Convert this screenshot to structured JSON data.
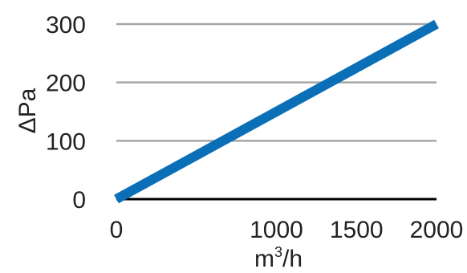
{
  "chart_data": {
    "type": "line",
    "title": "",
    "xlabel": "m³/h",
    "ylabel": "ΔPa",
    "xlim": [
      0,
      2000
    ],
    "ylim": [
      0,
      300
    ],
    "x_ticks": [
      0,
      1000,
      1500,
      2000
    ],
    "y_ticks": [
      0,
      100,
      200,
      300
    ],
    "grid": true,
    "legend": "none",
    "series": [
      {
        "color": "#0b6fb8",
        "x": [
          0,
          2000
        ],
        "y": [
          0,
          300
        ]
      }
    ],
    "colors": {
      "grid": "#a6a6a6",
      "baseline": "#000000",
      "text": "#222222"
    }
  }
}
